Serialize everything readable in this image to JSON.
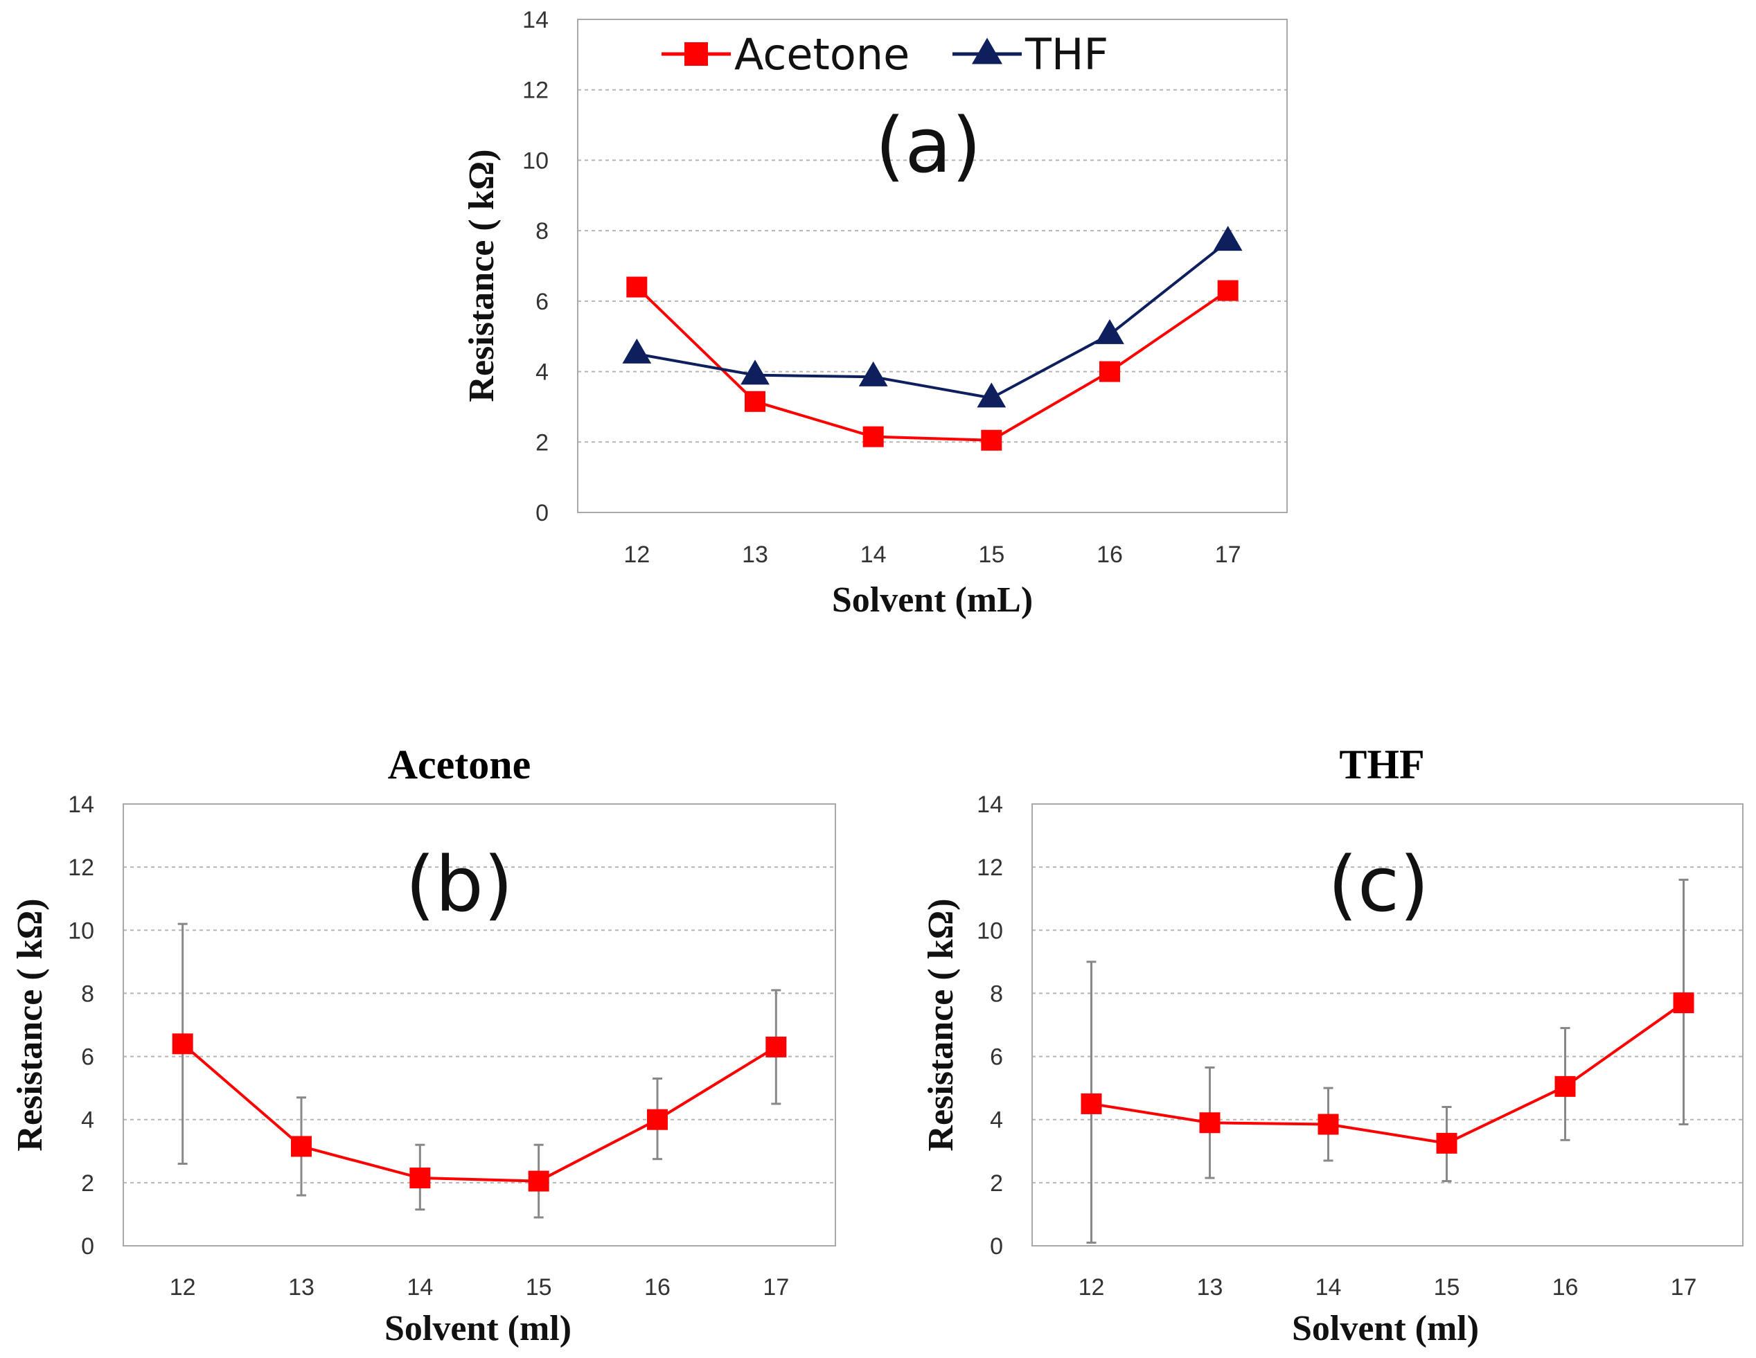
{
  "chart_data": [
    {
      "id": "a",
      "type": "line",
      "panel_label": "(a)",
      "title": "",
      "xlabel": "Solvent (mL)",
      "ylabel": "Resistance ( kΩ)",
      "categories": [
        "12",
        "13",
        "14",
        "15",
        "16",
        "17"
      ],
      "ylim": [
        0,
        14
      ],
      "yticks": [
        "0",
        "2",
        "4",
        "6",
        "8",
        "10",
        "12",
        "14"
      ],
      "grid": true,
      "legend": "top",
      "series": [
        {
          "name": "Acetone",
          "color": "#ff0000",
          "marker": "square",
          "values": [
            6.4,
            3.15,
            2.15,
            2.05,
            4.0,
            6.3
          ]
        },
        {
          "name": "THF",
          "color": "#0d1f5c",
          "marker": "triangle",
          "values": [
            4.5,
            3.9,
            3.85,
            3.25,
            5.05,
            7.7
          ]
        }
      ]
    },
    {
      "id": "b",
      "type": "line",
      "panel_label": "(b)",
      "title": "Acetone",
      "xlabel": "Solvent (ml)",
      "ylabel": "Resistance ( kΩ)",
      "categories": [
        "12",
        "13",
        "14",
        "15",
        "16",
        "17"
      ],
      "ylim": [
        0,
        14
      ],
      "yticks": [
        "0",
        "2",
        "4",
        "6",
        "8",
        "10",
        "12",
        "14"
      ],
      "grid": true,
      "series": [
        {
          "name": "Acetone",
          "color": "#ff0000",
          "marker": "square",
          "values": [
            6.4,
            3.15,
            2.15,
            2.05,
            4.0,
            6.3
          ],
          "error_low": [
            2.6,
            1.6,
            1.15,
            0.9,
            2.75,
            4.5
          ],
          "error_high": [
            10.2,
            4.7,
            3.2,
            3.2,
            5.3,
            8.1
          ]
        }
      ]
    },
    {
      "id": "c",
      "type": "line",
      "panel_label": "(c)",
      "title": "THF",
      "xlabel": "Solvent (ml)",
      "ylabel": "Resistance ( kΩ)",
      "categories": [
        "12",
        "13",
        "14",
        "15",
        "16",
        "17"
      ],
      "ylim": [
        0,
        14
      ],
      "yticks": [
        "0",
        "2",
        "4",
        "6",
        "8",
        "10",
        "12",
        "14"
      ],
      "grid": true,
      "series": [
        {
          "name": "THF",
          "color": "#ff0000",
          "marker": "square",
          "values": [
            4.5,
            3.9,
            3.85,
            3.25,
            5.05,
            7.7
          ],
          "error_low": [
            0.1,
            2.15,
            2.7,
            2.05,
            3.35,
            3.85
          ],
          "error_high": [
            9.0,
            5.65,
            5.0,
            4.4,
            6.9,
            11.6
          ]
        }
      ]
    }
  ]
}
